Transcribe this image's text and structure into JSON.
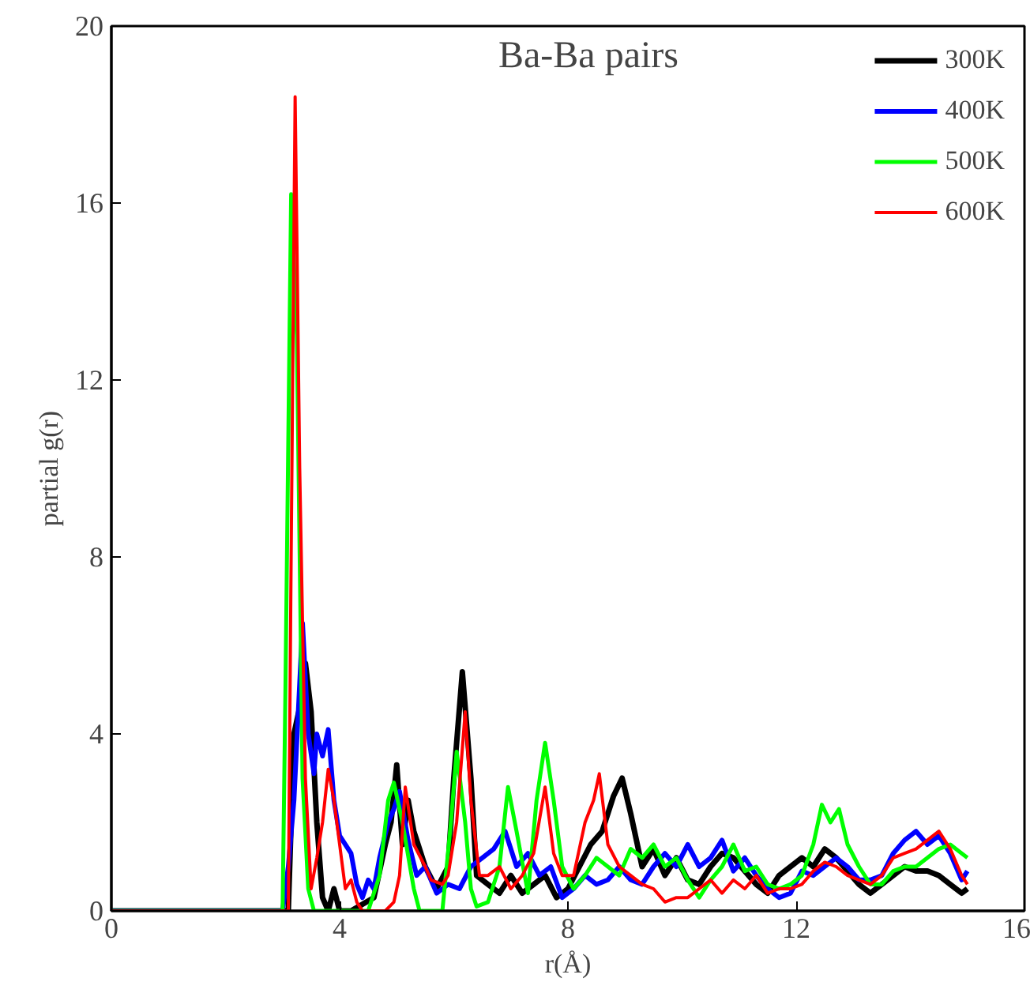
{
  "chart_data": {
    "type": "line",
    "title": "Ba-Ba pairs",
    "xlabel": "r(Å)",
    "ylabel": "partial g(r)",
    "xlim": [
      0,
      16
    ],
    "ylim": [
      0,
      20
    ],
    "xticks": [
      0,
      4,
      8,
      12,
      16
    ],
    "yticks": [
      0,
      4,
      8,
      12,
      16,
      20
    ],
    "grid": false,
    "legend": "top right",
    "marker": "none",
    "line_style": "solid",
    "series": [
      {
        "name": "300K",
        "color": "#000000",
        "x": [
          0,
          3.1,
          3.2,
          3.3,
          3.4,
          3.5,
          3.6,
          3.7,
          3.8,
          3.9,
          4.0,
          4.2,
          4.6,
          4.8,
          4.9,
          5.0,
          5.1,
          5.2,
          5.3,
          5.5,
          5.7,
          5.9,
          6.0,
          6.15,
          6.3,
          6.4,
          6.6,
          6.8,
          7.0,
          7.2,
          7.4,
          7.6,
          7.8,
          8.0,
          8.2,
          8.4,
          8.6,
          8.8,
          8.95,
          9.1,
          9.3,
          9.5,
          9.7,
          9.9,
          10.1,
          10.3,
          10.5,
          10.7,
          10.9,
          11.1,
          11.3,
          11.5,
          11.7,
          11.9,
          12.1,
          12.3,
          12.5,
          12.7,
          12.9,
          13.1,
          13.3,
          13.5,
          13.7,
          13.9,
          14.1,
          14.3,
          14.5,
          14.7,
          14.9,
          15.0
        ],
        "values": [
          0,
          0,
          4.0,
          4.6,
          5.6,
          4.5,
          2.0,
          0.3,
          0,
          0.5,
          0,
          0,
          0.3,
          1.5,
          2.0,
          3.3,
          1.5,
          2.5,
          1.8,
          1.0,
          0.5,
          1.0,
          3.0,
          5.4,
          3.0,
          0.8,
          0.6,
          0.4,
          0.8,
          0.4,
          0.6,
          0.8,
          0.3,
          0.5,
          1.0,
          1.5,
          1.8,
          2.6,
          3.0,
          2.2,
          1.0,
          1.4,
          0.8,
          1.2,
          0.7,
          0.6,
          1.0,
          1.3,
          1.2,
          0.9,
          0.6,
          0.4,
          0.8,
          1.0,
          1.2,
          1.0,
          1.4,
          1.2,
          0.9,
          0.6,
          0.4,
          0.6,
          0.8,
          1.0,
          0.9,
          0.9,
          0.8,
          0.6,
          0.4,
          0.5
        ]
      },
      {
        "name": "400K",
        "color": "#0000ff",
        "x": [
          0,
          3.0,
          3.1,
          3.2,
          3.35,
          3.45,
          3.55,
          3.6,
          3.7,
          3.8,
          3.9,
          4.0,
          4.2,
          4.3,
          4.4,
          4.5,
          4.6,
          4.7,
          4.85,
          4.95,
          5.05,
          5.2,
          5.35,
          5.5,
          5.7,
          5.9,
          6.1,
          6.3,
          6.5,
          6.7,
          6.9,
          7.1,
          7.3,
          7.5,
          7.7,
          7.9,
          8.1,
          8.3,
          8.5,
          8.7,
          8.9,
          9.1,
          9.3,
          9.5,
          9.7,
          9.9,
          10.1,
          10.3,
          10.5,
          10.7,
          10.9,
          11.1,
          11.3,
          11.5,
          11.7,
          11.9,
          12.1,
          12.3,
          12.5,
          12.7,
          12.9,
          13.1,
          13.3,
          13.5,
          13.7,
          13.9,
          14.1,
          14.3,
          14.5,
          14.7,
          14.9,
          15.0
        ],
        "values": [
          0,
          0,
          1.0,
          2.5,
          6.5,
          4.0,
          3.1,
          4.0,
          3.5,
          4.1,
          2.5,
          1.7,
          1.3,
          0.6,
          0.3,
          0.7,
          0.5,
          1.2,
          2.0,
          2.3,
          2.7,
          1.6,
          0.8,
          1.0,
          0.4,
          0.6,
          0.5,
          1.0,
          1.2,
          1.4,
          1.8,
          1.0,
          1.3,
          0.8,
          1.0,
          0.3,
          0.5,
          0.8,
          0.6,
          0.7,
          1.0,
          0.7,
          0.6,
          1.0,
          1.3,
          1.0,
          1.5,
          1.0,
          1.2,
          1.6,
          0.9,
          1.2,
          0.8,
          0.5,
          0.3,
          0.4,
          0.9,
          0.8,
          1.0,
          1.2,
          1.0,
          0.7,
          0.7,
          0.8,
          1.3,
          1.6,
          1.8,
          1.5,
          1.7,
          1.3,
          0.7,
          0.9
        ]
      },
      {
        "name": "500K",
        "color": "#00ff00",
        "x": [
          0,
          3.0,
          3.05,
          3.15,
          3.25,
          3.35,
          3.45,
          3.55,
          4.5,
          4.7,
          4.85,
          4.95,
          5.1,
          5.3,
          5.4,
          5.8,
          5.95,
          6.05,
          6.2,
          6.3,
          6.4,
          6.6,
          6.8,
          6.95,
          7.1,
          7.3,
          7.45,
          7.6,
          7.75,
          7.9,
          8.1,
          8.3,
          8.5,
          8.7,
          8.9,
          9.1,
          9.3,
          9.5,
          9.7,
          9.9,
          10.1,
          10.3,
          10.5,
          10.7,
          10.9,
          11.1,
          11.3,
          11.5,
          11.7,
          11.9,
          12.1,
          12.3,
          12.45,
          12.6,
          12.75,
          12.9,
          13.1,
          13.3,
          13.5,
          13.7,
          13.9,
          14.1,
          14.3,
          14.5,
          14.7,
          14.9,
          15.0
        ],
        "values": [
          0,
          0,
          5,
          16.2,
          13,
          3,
          0.5,
          0,
          0,
          0.8,
          2.5,
          2.9,
          2.0,
          0.5,
          0,
          0,
          2.0,
          3.6,
          2.0,
          0.5,
          0.1,
          0.2,
          1.0,
          2.8,
          1.8,
          0.4,
          2.5,
          3.8,
          2.5,
          1.0,
          0.5,
          0.8,
          1.2,
          1.0,
          0.8,
          1.4,
          1.2,
          1.5,
          1.0,
          1.2,
          0.7,
          0.3,
          0.7,
          1.0,
          1.5,
          0.9,
          1.0,
          0.6,
          0.5,
          0.6,
          0.8,
          1.5,
          2.4,
          2.0,
          2.3,
          1.5,
          1.0,
          0.6,
          0.6,
          0.9,
          1.0,
          1.0,
          1.2,
          1.4,
          1.5,
          1.3,
          1.2
        ]
      },
      {
        "name": "600K",
        "color": "#ff0000",
        "x": [
          0,
          3.1,
          3.15,
          3.22,
          3.3,
          3.4,
          3.5,
          3.6,
          3.7,
          3.8,
          3.9,
          4.0,
          4.1,
          4.2,
          4.3,
          4.4,
          4.8,
          4.95,
          5.05,
          5.15,
          5.3,
          5.5,
          5.6,
          5.8,
          5.9,
          6.05,
          6.2,
          6.3,
          6.45,
          6.6,
          6.8,
          7.0,
          7.2,
          7.4,
          7.6,
          7.75,
          7.9,
          8.1,
          8.3,
          8.45,
          8.55,
          8.7,
          8.9,
          9.1,
          9.3,
          9.5,
          9.7,
          9.9,
          10.1,
          10.3,
          10.5,
          10.7,
          10.9,
          11.1,
          11.3,
          11.5,
          11.7,
          11.9,
          12.1,
          12.3,
          12.5,
          12.7,
          12.9,
          13.1,
          13.3,
          13.5,
          13.7,
          13.9,
          14.1,
          14.3,
          14.5,
          14.7,
          14.9,
          15.0
        ],
        "values": [
          0,
          0,
          8,
          18.4,
          10,
          3,
          0.5,
          1.2,
          2.0,
          3.2,
          2.5,
          1.5,
          0.5,
          0.7,
          0.2,
          0,
          0,
          0.2,
          0.8,
          2.8,
          1.5,
          1.0,
          0.7,
          0.6,
          0.8,
          2.0,
          4.5,
          2.5,
          0.8,
          0.8,
          1.0,
          0.5,
          0.8,
          1.3,
          2.8,
          1.3,
          0.8,
          0.8,
          2.0,
          2.5,
          3.1,
          1.5,
          1.0,
          0.8,
          0.6,
          0.5,
          0.2,
          0.3,
          0.3,
          0.5,
          0.7,
          0.4,
          0.7,
          0.5,
          0.8,
          0.4,
          0.5,
          0.5,
          0.6,
          0.9,
          1.1,
          1.0,
          0.8,
          0.7,
          0.6,
          0.8,
          1.2,
          1.3,
          1.4,
          1.6,
          1.8,
          1.4,
          0.8,
          0.6
        ]
      }
    ]
  }
}
